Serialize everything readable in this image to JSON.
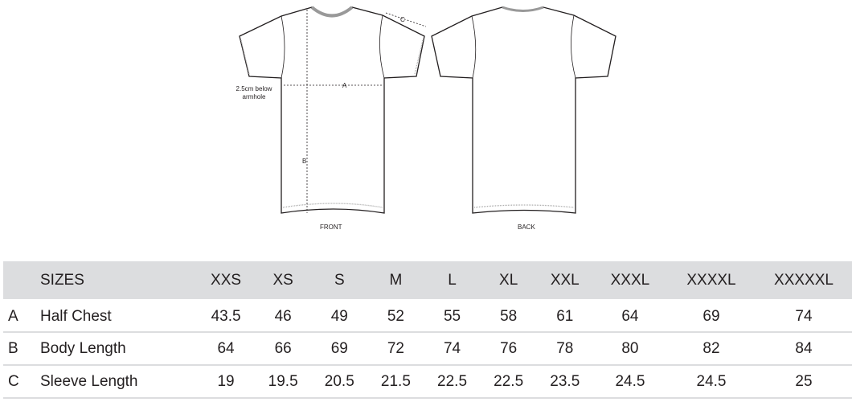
{
  "diagram": {
    "front_label": "FRONT",
    "back_label": "BACK",
    "measure_a": "A",
    "measure_b": "B",
    "measure_c": "C",
    "note": "2.5cm below armhole"
  },
  "table": {
    "header_label": "SIZES",
    "sizes": [
      "XXS",
      "XS",
      "S",
      "M",
      "L",
      "XL",
      "XXL",
      "XXXL",
      "XXXXL",
      "XXXXXL"
    ],
    "rows": [
      {
        "letter": "A",
        "name": "Half Chest",
        "values": [
          "43.5",
          "46",
          "49",
          "52",
          "55",
          "58",
          "61",
          "64",
          "69",
          "74"
        ]
      },
      {
        "letter": "B",
        "name": "Body Length",
        "values": [
          "64",
          "66",
          "69",
          "72",
          "74",
          "76",
          "78",
          "80",
          "82",
          "84"
        ]
      },
      {
        "letter": "C",
        "name": "Sleeve Length",
        "values": [
          "19",
          "19.5",
          "20.5",
          "21.5",
          "22.5",
          "22.5",
          "23.5",
          "24.5",
          "24.5",
          "25"
        ]
      }
    ]
  },
  "colors": {
    "header_bg": "#dcdddf",
    "text": "#231f20"
  }
}
